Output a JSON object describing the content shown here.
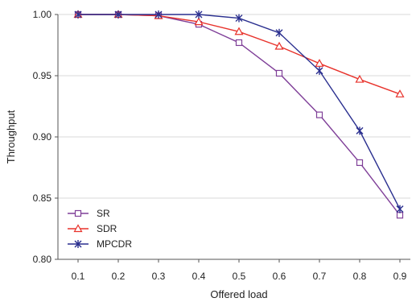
{
  "chart_data": {
    "type": "line",
    "title": "",
    "xlabel": "Offered load",
    "ylabel": "Throughput",
    "x": [
      0.1,
      0.2,
      0.3,
      0.4,
      0.5,
      0.6,
      0.7,
      0.8,
      0.9
    ],
    "x_tick_labels": [
      "0.1",
      "0.2",
      "0.3",
      "0.4",
      "0.5",
      "0.6",
      "0.7",
      "0.8",
      "0.9"
    ],
    "ylim": [
      0.8,
      1.0
    ],
    "y_ticks": [
      0.8,
      0.85,
      0.9,
      0.95,
      1.0
    ],
    "y_tick_labels": [
      "0.80",
      "0.85",
      "0.90",
      "0.95",
      "1.00"
    ],
    "grid": "horizontal",
    "legend_position": "bottom-left",
    "series": [
      {
        "name": "SR",
        "marker": "square",
        "color": "#7f3f98",
        "values": [
          1.0,
          1.0,
          0.999,
          0.992,
          0.977,
          0.952,
          0.918,
          0.879,
          0.836
        ]
      },
      {
        "name": "SDR",
        "marker": "triangle",
        "color": "#e8322b",
        "values": [
          1.0,
          1.0,
          0.999,
          0.994,
          0.986,
          0.974,
          0.96,
          0.947,
          0.935
        ]
      },
      {
        "name": "MPCDR",
        "marker": "star",
        "color": "#2a2f8f",
        "values": [
          1.0,
          1.0,
          1.0,
          1.0,
          0.997,
          0.985,
          0.954,
          0.905,
          0.841
        ]
      }
    ]
  }
}
